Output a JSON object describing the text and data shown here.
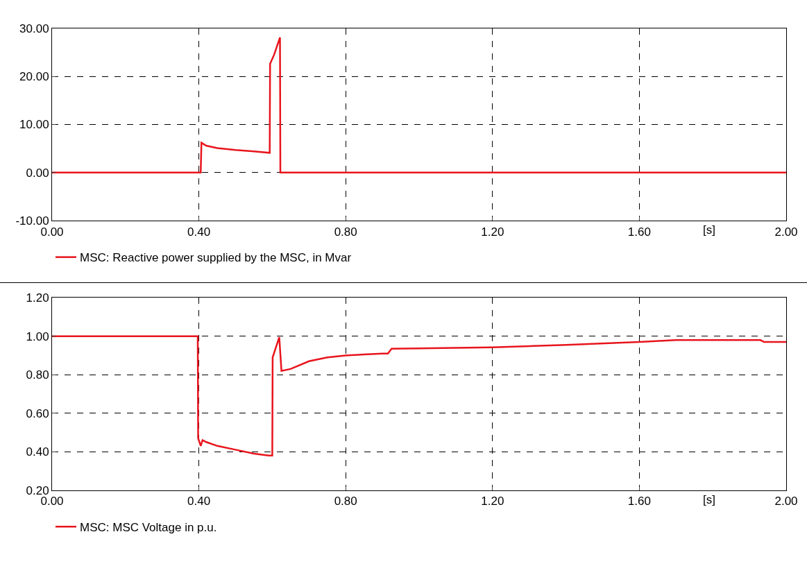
{
  "chart_data": [
    {
      "type": "line",
      "xlabel": "[s]",
      "grid": true,
      "legend": "bottom",
      "line_style": "solid",
      "marker": "none",
      "x": [
        0,
        0.405,
        0.407,
        0.42,
        0.45,
        0.5,
        0.55,
        0.593,
        0.594,
        0.605,
        0.621,
        0.622,
        2.0
      ],
      "xlim": [
        0,
        2
      ],
      "xticks": [
        {
          "value": 0,
          "label": "0.00"
        },
        {
          "value": 0.4,
          "label": "0.40"
        },
        {
          "value": 0.8,
          "label": "0.80"
        },
        {
          "value": 1.2,
          "label": "1.20"
        },
        {
          "value": 1.6,
          "label": "1.60"
        },
        {
          "value": 2.0,
          "label": "2.00"
        }
      ],
      "ylim": [
        -10,
        30
      ],
      "yticks": [
        {
          "value": -10,
          "label": "-10.00"
        },
        {
          "value": 0,
          "label": "0.00"
        },
        {
          "value": 10,
          "label": "10.00"
        },
        {
          "value": 20,
          "label": "20.00"
        },
        {
          "value": 30,
          "label": "30.00"
        }
      ],
      "series": [
        {
          "name": "MSC: Reactive power supplied by the MSC, in Mvar",
          "color": "#e8141c",
          "values": [
            0,
            0,
            6.2,
            5.6,
            5.1,
            4.7,
            4.4,
            4.1,
            22.6,
            24.5,
            28.1,
            0,
            0
          ]
        }
      ]
    },
    {
      "type": "line",
      "xlabel": "[s]",
      "grid": true,
      "legend": "bottom",
      "line_style": "solid",
      "marker": "none",
      "x": [
        0,
        0.397,
        0.398,
        0.405,
        0.41,
        0.42,
        0.45,
        0.5,
        0.55,
        0.59,
        0.6,
        0.601,
        0.619,
        0.625,
        0.65,
        0.7,
        0.75,
        0.8,
        0.85,
        0.9,
        0.915,
        0.925,
        1.0,
        1.2,
        1.4,
        1.6,
        1.7,
        1.93,
        1.94,
        2.0
      ],
      "xlim": [
        0,
        2
      ],
      "xticks": [
        {
          "value": 0,
          "label": "0.00"
        },
        {
          "value": 0.4,
          "label": "0.40"
        },
        {
          "value": 0.8,
          "label": "0.80"
        },
        {
          "value": 1.2,
          "label": "1.20"
        },
        {
          "value": 1.6,
          "label": "1.60"
        },
        {
          "value": 2.0,
          "label": "2.00"
        }
      ],
      "ylim": [
        0.2,
        1.2
      ],
      "yticks": [
        {
          "value": 0.2,
          "label": "0.20"
        },
        {
          "value": 0.4,
          "label": "0.40"
        },
        {
          "value": 0.6,
          "label": "0.60"
        },
        {
          "value": 0.8,
          "label": "0.80"
        },
        {
          "value": 1.0,
          "label": "1.00"
        },
        {
          "value": 1.2,
          "label": "1.20"
        }
      ],
      "series": [
        {
          "name": "MSC: MSC Voltage in p.u.",
          "color": "#e8141c",
          "values": [
            1.0,
            1.0,
            0.47,
            0.43,
            0.46,
            0.45,
            0.43,
            0.41,
            0.39,
            0.38,
            0.38,
            0.89,
            0.995,
            0.82,
            0.83,
            0.87,
            0.89,
            0.9,
            0.905,
            0.91,
            0.91,
            0.935,
            0.937,
            0.942,
            0.955,
            0.97,
            0.98,
            0.98,
            0.97,
            0.97
          ]
        }
      ]
    }
  ]
}
